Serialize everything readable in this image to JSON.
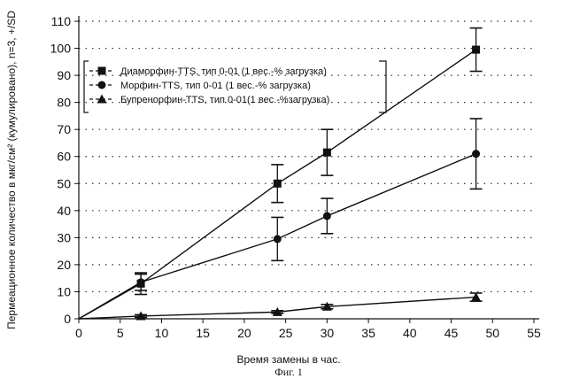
{
  "chart_data": {
    "type": "line",
    "xlabel": "Время замены в час.",
    "ylabel": "Пермеационное количество в мкг/см² (кумулировано), n=3, +/SD",
    "caption": "Фиг. 1",
    "xlim": [
      0,
      55
    ],
    "ylim": [
      0,
      110
    ],
    "x_ticks": [
      0,
      5,
      10,
      15,
      20,
      25,
      30,
      35,
      40,
      45,
      50,
      55
    ],
    "y_ticks": [
      0,
      10,
      20,
      30,
      40,
      50,
      60,
      70,
      80,
      90,
      100,
      110
    ],
    "grid": "horizontal dotted",
    "legend_placement": "top-left",
    "series": [
      {
        "name": "Диаморфин-TTS,  тип 0-01 (1 вес.-% загрузка)",
        "marker": "square",
        "x": [
          0,
          7.5,
          24,
          30,
          48
        ],
        "y": [
          0,
          13,
          50,
          61.5,
          99.5
        ],
        "err": [
          0,
          4,
          7,
          8.5,
          8
        ]
      },
      {
        "name": "Морфин-TTS,        тип 0-01 (1 вес.-% загрузка)",
        "marker": "circle",
        "x": [
          0,
          7.5,
          24,
          30,
          48
        ],
        "y": [
          0,
          13.5,
          29.5,
          38,
          61
        ],
        "err": [
          0,
          3,
          8,
          6.5,
          13
        ]
      },
      {
        "name": "Бупренорфин-TTS, тип 0-01(1 вес.-%загрузка)",
        "marker": "triangle",
        "x": [
          0,
          7.5,
          24,
          30,
          48
        ],
        "y": [
          0,
          1,
          2.5,
          4.5,
          8
        ],
        "err": [
          0,
          0.5,
          0.5,
          0.8,
          1.5
        ]
      }
    ]
  }
}
